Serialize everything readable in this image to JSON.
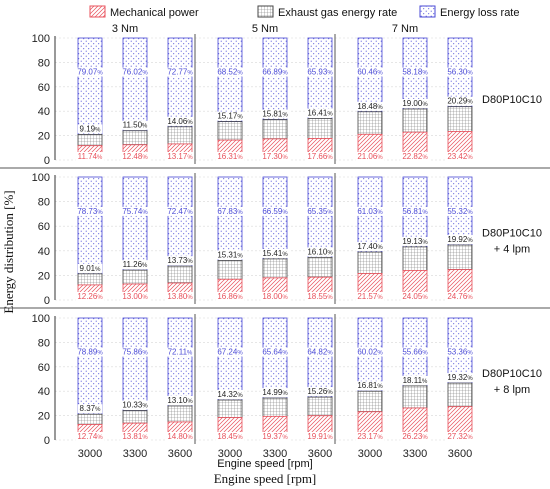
{
  "chart_data": {
    "type": "bar",
    "subtype": "stacked-percent",
    "legend": {
      "position": "top",
      "entries": [
        {
          "name": "Mechanical power",
          "color": "#e8505b",
          "pattern": "diagonal-hatch"
        },
        {
          "name": "Exhaust gas energy rate",
          "color": "#555555",
          "pattern": "grid"
        },
        {
          "name": "Energy loss rate",
          "color": "#5555dd",
          "pattern": "dots"
        }
      ]
    },
    "ylabel": "Energy distribution  [%]",
    "xlabel": "Engine speed [rpm]",
    "xlabel_outer": "Engine speed [rpm]",
    "ylim": [
      0,
      100
    ],
    "yticks": [
      "0",
      "20",
      "40",
      "60",
      "80",
      "100"
    ],
    "grid": true,
    "torque_groups": [
      "3 Nm",
      "5 Nm",
      "7 Nm"
    ],
    "speeds": [
      "3000",
      "3300",
      "3600"
    ],
    "colors": {
      "mech": "#e8505b",
      "exh": "#444444",
      "loss": "#4a4ad6"
    },
    "panels": [
      {
        "label": "D80P10C10",
        "mech": [
          11.74,
          12.48,
          13.17,
          16.31,
          17.3,
          17.66,
          21.06,
          22.82,
          23.42
        ],
        "exhaust": [
          9.19,
          11.5,
          14.06,
          15.17,
          15.81,
          16.41,
          18.48,
          19.0,
          20.29
        ],
        "loss": [
          79.07,
          76.02,
          72.77,
          68.52,
          66.89,
          65.93,
          60.46,
          58.18,
          56.3
        ]
      },
      {
        "label": "D80P10C10 + 4 lpm",
        "mech": [
          12.26,
          13.0,
          13.8,
          16.86,
          18.0,
          18.55,
          21.57,
          24.05,
          24.76
        ],
        "exhaust": [
          9.01,
          11.26,
          13.73,
          15.31,
          15.41,
          16.1,
          17.4,
          19.13,
          19.92
        ],
        "loss": [
          78.73,
          75.74,
          72.47,
          67.83,
          66.59,
          65.35,
          61.03,
          56.81,
          55.32
        ]
      },
      {
        "label": "D80P10C10 + 8 lpm",
        "mech": [
          12.74,
          13.81,
          14.8,
          18.45,
          19.37,
          19.91,
          23.17,
          26.23,
          27.32
        ],
        "exhaust": [
          8.37,
          10.33,
          13.1,
          14.32,
          14.99,
          15.26,
          16.81,
          18.11,
          19.32
        ],
        "loss": [
          78.89,
          75.86,
          72.11,
          67.24,
          65.64,
          64.82,
          60.02,
          55.66,
          53.36
        ]
      }
    ]
  }
}
